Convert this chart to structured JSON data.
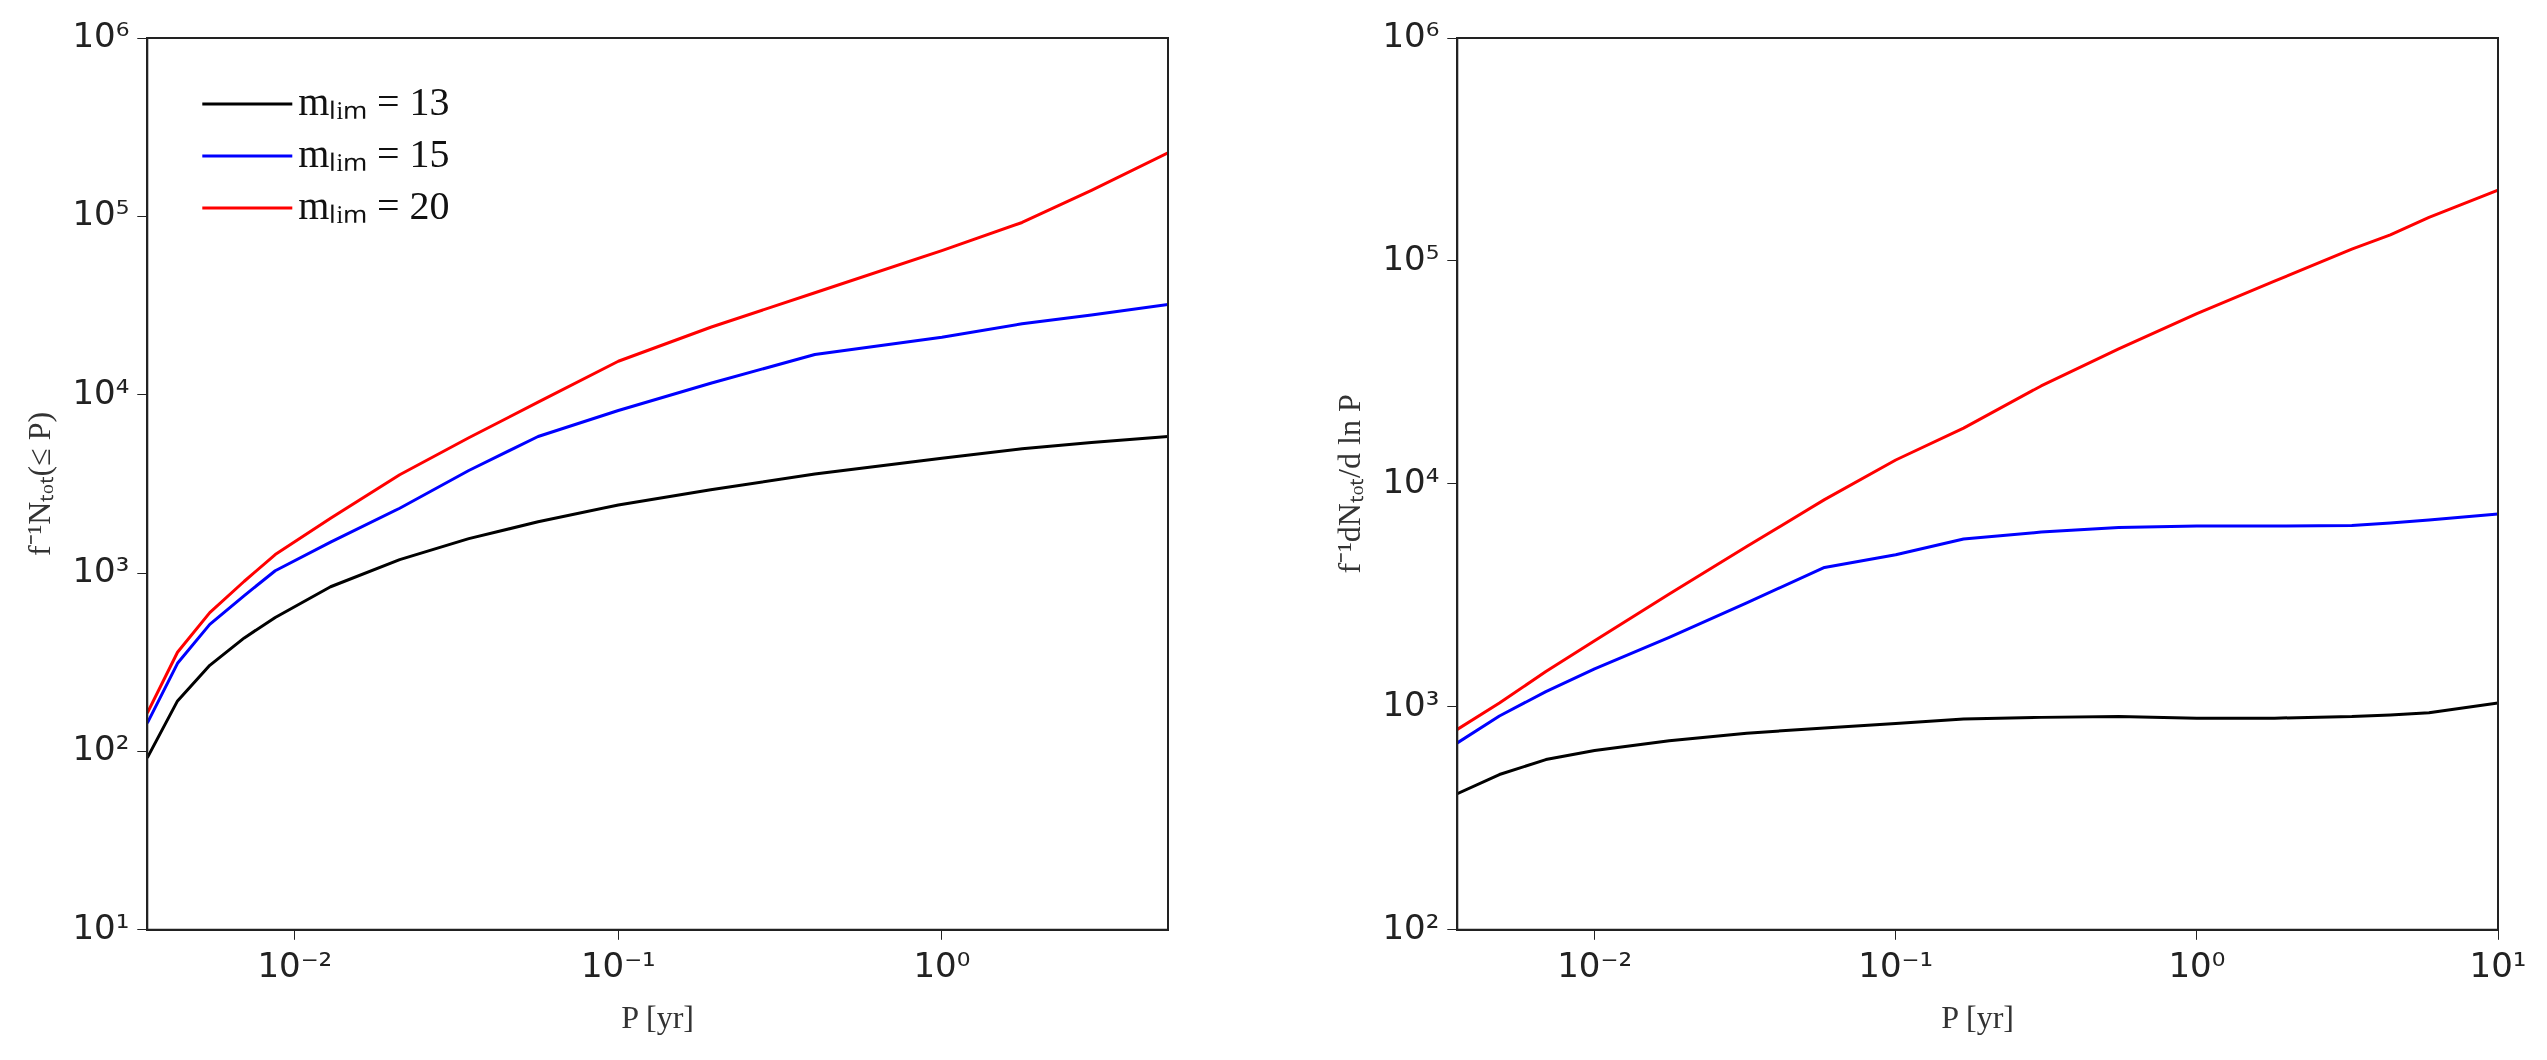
{
  "chart_data": [
    {
      "type": "line",
      "xlabel": "P [yr]",
      "ylabel": "f⁻¹Nₜₒₜ(≤ P)",
      "log": "xy",
      "grid": false,
      "legend": "top left",
      "xlim": [
        0.0035,
        5
      ],
      "ylim": [
        10,
        1000000
      ],
      "xticks": [
        {
          "value": 0.01,
          "label": "10⁻²"
        },
        {
          "value": 0.1,
          "label": "10⁻¹"
        },
        {
          "value": 1,
          "label": "10⁰"
        }
      ],
      "yticks": [
        {
          "value": 10,
          "label": "10¹"
        },
        {
          "value": 100,
          "label": "10²"
        },
        {
          "value": 1000,
          "label": "10³"
        },
        {
          "value": 10000,
          "label": "10⁴"
        },
        {
          "value": 100000,
          "label": "10⁵"
        },
        {
          "value": 1000000,
          "label": "10⁶"
        }
      ],
      "x": [
        0.0035,
        0.00434,
        0.00546,
        0.00698,
        0.0087,
        0.0129,
        0.0211,
        0.0345,
        0.0565,
        0.1,
        0.193,
        0.405,
        1,
        1.77,
        2.9,
        5
      ],
      "series": [
        {
          "name": "mₗᵢₘ = 13",
          "color": "#000000",
          "values": [
            92,
            192,
            304,
            433,
            564,
            838,
            1190,
            1560,
            1940,
            2410,
            2930,
            3590,
            4410,
            4980,
            5400,
            5830
          ]
        },
        {
          "name": "mₗᵢₘ = 15",
          "color": "#0000ff",
          "values": [
            144,
            312,
            516,
            748,
            1030,
            1490,
            2310,
            3760,
            5830,
            8160,
            11600,
            16800,
            21000,
            25000,
            28000,
            32100
          ]
        },
        {
          "name": "mₗᵢₘ = 20",
          "color": "#ff0000",
          "values": [
            164,
            360,
            600,
            900,
            1270,
            2030,
            3560,
            5740,
            9080,
            15400,
            23900,
            37300,
            64300,
            92400,
            140000,
            227000
          ]
        }
      ]
    },
    {
      "type": "line",
      "xlabel": "P [yr]",
      "ylabel": "f⁻¹dNₜₒₜ/d ln P",
      "log": "xy",
      "grid": false,
      "legend": false,
      "xlim": [
        0.0035,
        10
      ],
      "ylim": [
        100,
        1000000
      ],
      "xticks": [
        {
          "value": 0.01,
          "label": "10⁻²"
        },
        {
          "value": 0.1,
          "label": "10⁻¹"
        },
        {
          "value": 1,
          "label": "10⁰"
        },
        {
          "value": 10,
          "label": "10¹"
        }
      ],
      "yticks": [
        {
          "value": 100,
          "label": "10²"
        },
        {
          "value": 1000,
          "label": "10³"
        },
        {
          "value": 10000,
          "label": "10⁴"
        },
        {
          "value": 100000,
          "label": "10⁵"
        },
        {
          "value": 1000000,
          "label": "10⁶"
        }
      ],
      "x": [
        0.0035,
        0.00483,
        0.00689,
        0.01,
        0.0177,
        0.032,
        0.058,
        0.1,
        0.168,
        0.304,
        0.55,
        1,
        1.81,
        3.27,
        4.39,
        5.9,
        10
      ],
      "series": [
        {
          "color": "#000000",
          "values": [
            408,
            497,
            580,
            637,
            705,
            762,
            804,
            843,
            883,
            897,
            904,
            890,
            890,
            904,
            920,
            940,
            1040
          ]
        },
        {
          "color": "#0000ff",
          "values": [
            689,
            910,
            1170,
            1480,
            2050,
            2930,
            4220,
            4810,
            5660,
            6080,
            6370,
            6470,
            6470,
            6500,
            6670,
            6880,
            7330
          ]
        },
        {
          "color": "#ff0000",
          "values": [
            792,
            1040,
            1440,
            1980,
            3210,
            5240,
            8500,
            12800,
            17800,
            27500,
            40300,
            58100,
            81100,
            113000,
            131000,
            157000,
            208000
          ]
        }
      ]
    }
  ]
}
